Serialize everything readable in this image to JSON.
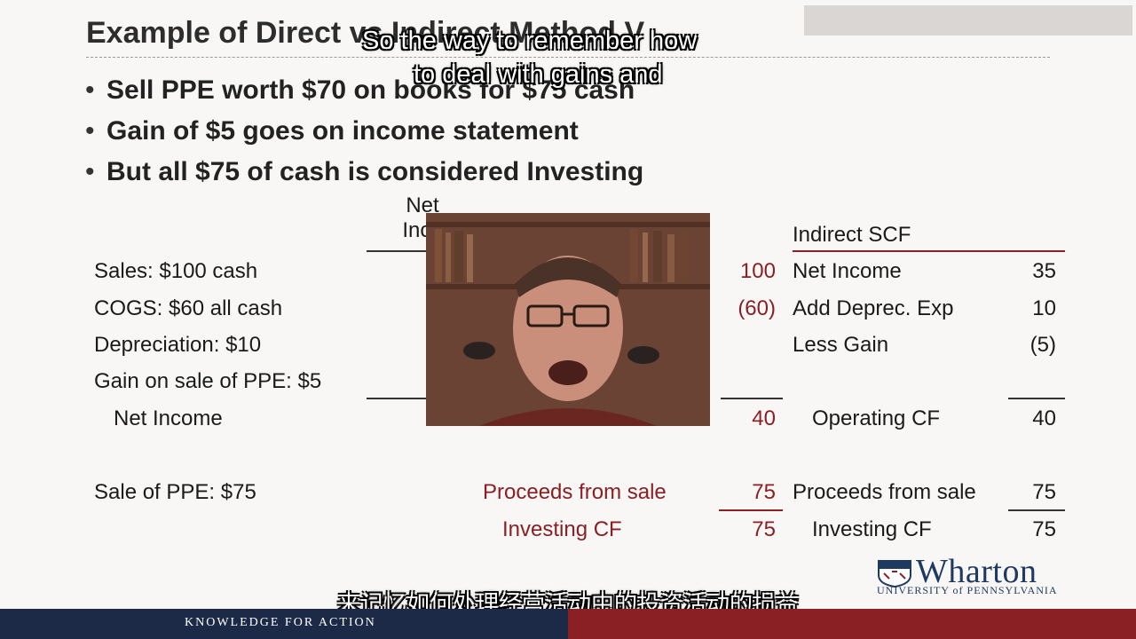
{
  "slide": {
    "title": "Example of Direct vs Indirect Method V",
    "bullets": [
      "Sell PPE worth $70 on books for $75 cash",
      "Gain of $5 goes on income statement",
      "But all $75 of cash is considered Investing"
    ],
    "column_headers": {
      "net_income_line1": "Net",
      "net_income_line2": "Inco",
      "indirect": "Indirect SCF"
    },
    "left_items": {
      "sales": "Sales: $100 cash",
      "cogs": "COGS: $60 all cash",
      "depreciation": "Depreciation: $10",
      "gain": "Gain on sale of PPE: $5",
      "net_income": "Net Income",
      "sale_ppe": "Sale of PPE: $75"
    },
    "direct": {
      "sales_val": "100",
      "cogs_val": "(60)",
      "operating_val": "40",
      "proceeds_label": "Proceeds from sale",
      "proceeds_val": "75",
      "investing_label": "Investing CF",
      "investing_val": "75"
    },
    "indirect": {
      "net_income_label": "Net Income",
      "net_income_val": "35",
      "deprec_label": "Add Deprec. Exp",
      "deprec_val": "10",
      "gain_label": "Less Gain",
      "gain_val": "(5)",
      "operating_label": "Operating CF",
      "operating_val": "40",
      "proceeds_label": "Proceeds from sale",
      "proceeds_val": "75",
      "investing_label": "Investing CF",
      "investing_val": "75"
    }
  },
  "captions": {
    "english_line1": "So the way to remember how",
    "english_line2": "to deal with gains and",
    "chinese": "来记忆如何处理经营活动中的投资活动的损益"
  },
  "branding": {
    "logo_name": "Wharton",
    "logo_sub": "UNIVERSITY of PENNSYLVANIA",
    "footer_tag": "KNOWLEDGE FOR ACTION"
  },
  "colors": {
    "accent_red": "#8a1f24",
    "navy": "#1c2a48"
  }
}
